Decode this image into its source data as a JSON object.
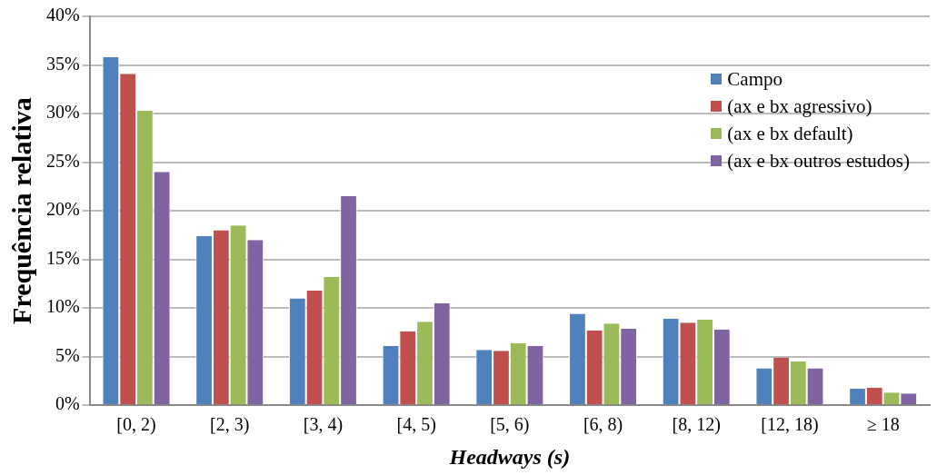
{
  "chart_data": {
    "type": "bar",
    "categories": [
      "[0, 2)",
      "[2, 3)",
      "[3, 4)",
      "[4, 5)",
      "[5, 6)",
      "[6, 8)",
      "[8, 12)",
      "[12, 18)",
      "≥ 18"
    ],
    "series": [
      {
        "name": "Campo",
        "color": "#4f81bd",
        "values": [
          35.8,
          17.4,
          11.0,
          6.1,
          5.7,
          9.4,
          8.9,
          3.8,
          1.7
        ]
      },
      {
        "name": "(ax e bx agressivo)",
        "color": "#c0504d",
        "values": [
          34.1,
          18.0,
          11.8,
          7.6,
          5.6,
          7.7,
          8.5,
          4.9,
          1.8
        ]
      },
      {
        "name": "(ax e bx default)",
        "color": "#9bbb59",
        "values": [
          30.3,
          18.5,
          13.2,
          8.6,
          6.4,
          8.4,
          8.8,
          4.5,
          1.3
        ]
      },
      {
        "name": "(ax e bx outros estudos)",
        "color": "#8064a2",
        "values": [
          24.0,
          17.0,
          21.5,
          10.5,
          6.1,
          7.9,
          7.8,
          3.8,
          1.2
        ]
      }
    ],
    "xlabel": "Headways (s)",
    "ylabel": "Frequência relativa",
    "ylim": [
      0,
      40
    ],
    "yticks": [
      {
        "value": 0,
        "label": "0%"
      },
      {
        "value": 5,
        "label": "5%"
      },
      {
        "value": 10,
        "label": "10%"
      },
      {
        "value": 15,
        "label": "15%"
      },
      {
        "value": 20,
        "label": "20%"
      },
      {
        "value": 25,
        "label": "25%"
      },
      {
        "value": 30,
        "label": "30%"
      },
      {
        "value": 35,
        "label": "35%"
      },
      {
        "value": 40,
        "label": "40%"
      }
    ],
    "grid": "y",
    "legend": "top right"
  }
}
